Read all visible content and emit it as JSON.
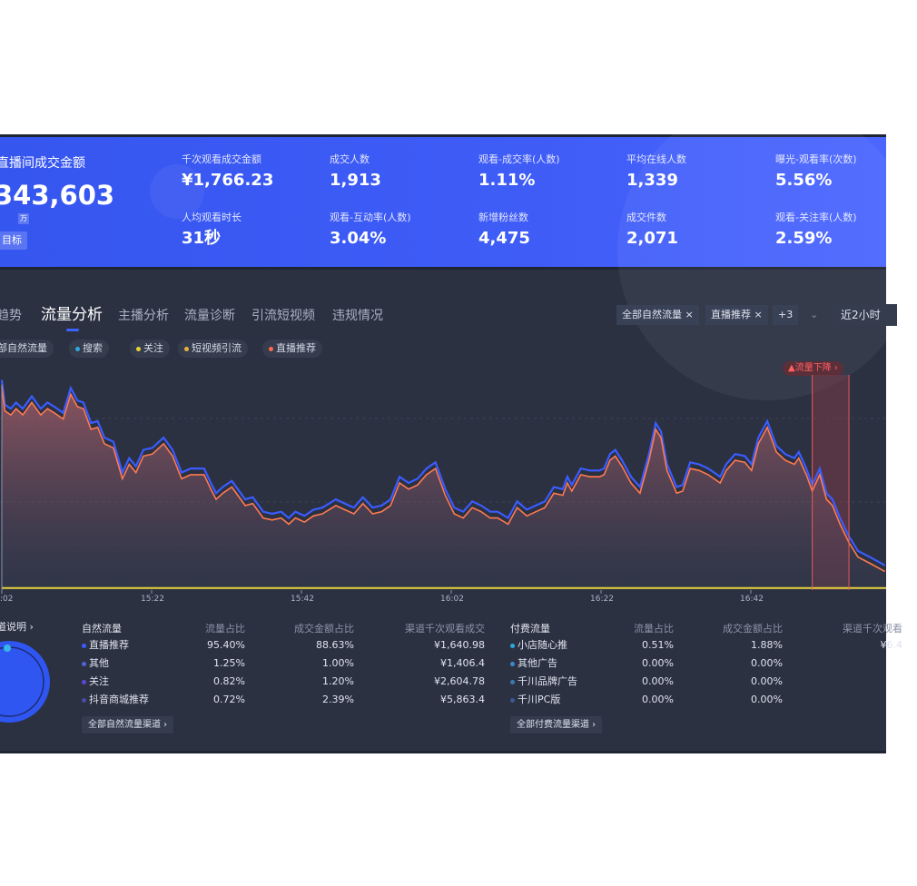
{
  "summary": {
    "main_label": "直播间成交金额",
    "main_value": "343,603",
    "unit": "万",
    "goal_button": "目标",
    "kpis": [
      {
        "label": "千次观看成交金额",
        "value": "¥1,766.23"
      },
      {
        "label": "成交人数",
        "value": "1,913"
      },
      {
        "label": "观看-成交率(人数)",
        "value": "1.11%"
      },
      {
        "label": "平均在线人数",
        "value": "1,339"
      },
      {
        "label": "曝光-观看率(次数)",
        "value": "5.56%"
      },
      {
        "label": "人均观看时长",
        "value": "31秒"
      },
      {
        "label": "观看-互动率(人数)",
        "value": "3.04%"
      },
      {
        "label": "新增粉丝数",
        "value": "4,475"
      },
      {
        "label": "成交件数",
        "value": "2,071"
      },
      {
        "label": "观看-关注率(人数)",
        "value": "2.59%"
      }
    ]
  },
  "tabs": [
    "趋势",
    "流量分析",
    "主播分析",
    "流量诊断",
    "引流短视频",
    "违规情况"
  ],
  "filters": {
    "chips": [
      {
        "label": "部自然流量",
        "color": ""
      },
      {
        "label": "搜索",
        "color": "#2fa8e0"
      },
      {
        "label": "关注",
        "color": "#e8d23a"
      },
      {
        "label": "短视频引流",
        "color": "#e8b040"
      },
      {
        "label": "直播推荐",
        "color": "#ff6a4a"
      }
    ],
    "tags": [
      "全部自然流量 ×",
      "直播推荐 ×",
      "+3",
      "⌄"
    ],
    "range": "近2小时"
  },
  "chart_data": {
    "type": "area",
    "x_unit": "minutes since 15:02",
    "xticks": [
      {
        "m": 0,
        "label": ":02"
      },
      {
        "m": 20,
        "label": "15:22"
      },
      {
        "m": 40,
        "label": "15:42"
      },
      {
        "m": 60,
        "label": "16:02"
      },
      {
        "m": 80,
        "label": "16:22"
      },
      {
        "m": 100,
        "label": "16:42"
      }
    ],
    "xlim": [
      0,
      118
    ],
    "ylim": [
      0,
      100
    ],
    "annotation": {
      "label": "▲流量下降 ›",
      "from": 108.2,
      "to": 113.1
    },
    "series_orange": {
      "name": "直播推荐",
      "color": "#ff7a50",
      "x": [
        0,
        0.4,
        1.2,
        1.9,
        2.8,
        4.0,
        5.2,
        6.1,
        7.0,
        8.2,
        9.2,
        10.1,
        10.9,
        11.9,
        12.8,
        13.7,
        14.9,
        16.1,
        17.0,
        17.9,
        18.9,
        20.1,
        21.6,
        22.8,
        24.0,
        25.2,
        27.0,
        27.9,
        28.6,
        29.5,
        30.7,
        32.5,
        33.5,
        34.9,
        36.1,
        37.3,
        38.3,
        39.2,
        40.4,
        41.6,
        42.8,
        44.6,
        45.8,
        47.0,
        48.2,
        49.5,
        50.7,
        51.9,
        53.1,
        54.3,
        55.5,
        56.7,
        57.9,
        59.2,
        60.4,
        61.6,
        62.8,
        64.0,
        65.2,
        66.2,
        67.6,
        68.8,
        70.1,
        71.3,
        72.5,
        73.7,
        74.9,
        75.5,
        76.1,
        77.3,
        78.5,
        79.8,
        80.4,
        81.2,
        81.9,
        82.8,
        84.0,
        85.2,
        86.4,
        87.3,
        88.0,
        88.8,
        90.1,
        90.9,
        91.9,
        93.1,
        94.3,
        95.9,
        96.7,
        97.9,
        99.2,
        100.1,
        101.0,
        102.2,
        103.4,
        104.6,
        105.8,
        106.4,
        107.4,
        108.2,
        109.2,
        110.1,
        110.9,
        111.9,
        113.1,
        114.3,
        115.9,
        117.9
      ],
      "values": [
        99,
        87,
        85,
        88,
        85,
        91,
        85,
        88,
        86,
        83,
        95,
        89,
        88,
        78,
        79,
        71,
        69,
        54,
        61,
        57,
        65,
        66,
        71,
        65,
        54,
        56,
        56,
        49,
        44,
        47,
        50,
        41,
        42,
        35,
        34,
        35,
        32,
        35,
        33,
        36,
        37,
        41,
        39,
        37,
        42,
        37,
        38,
        41,
        52,
        49,
        51,
        56,
        59,
        46,
        37,
        35,
        40,
        38,
        35,
        35,
        32,
        40,
        36,
        38,
        40,
        47,
        46,
        52,
        48,
        56,
        55,
        55,
        56,
        63,
        65,
        60,
        52,
        47,
        63,
        78,
        74,
        58,
        47,
        48,
        59,
        58,
        56,
        52,
        58,
        63,
        62,
        58,
        71,
        79,
        67,
        63,
        61,
        64,
        56,
        48,
        56,
        44,
        41,
        32,
        23,
        16,
        13,
        9
      ]
    },
    "series_blue": {
      "name": "全部自然流量",
      "color": "#3a5cff",
      "offset": 3
    },
    "series_yellow": {
      "name": "关注",
      "color": "#e8d23a",
      "value": 1
    }
  },
  "natural": {
    "explain": "道说明 ›",
    "headers": [
      "自然流量",
      "流量占比",
      "成交金额占比",
      "渠道千次观看成交"
    ],
    "rows": [
      {
        "name": "直播推荐",
        "color": "#3a5cff",
        "share": "95.40%",
        "gmv": "88.63%",
        "cpm": "¥1,640.98"
      },
      {
        "name": "其他",
        "color": "#4a66d8",
        "share": "1.25%",
        "gmv": "1.00%",
        "cpm": "¥1,406.4"
      },
      {
        "name": "关注",
        "color": "#5a4ad8",
        "share": "0.82%",
        "gmv": "1.20%",
        "cpm": "¥2,604.78"
      },
      {
        "name": "抖音商城推荐",
        "color": "#4a4aa8",
        "share": "0.72%",
        "gmv": "2.39%",
        "cpm": "¥5,863.4"
      }
    ],
    "all_button": "全部自然流量渠道 ›"
  },
  "paid": {
    "headers": [
      "付费流量",
      "流量占比",
      "成交金额占比",
      "渠道千次观看"
    ],
    "rows": [
      {
        "name": "小店随心推",
        "color": "#2fa8e0",
        "share": "0.51%",
        "gmv": "1.88%",
        "cpm": "¥6.4"
      },
      {
        "name": "其他广告",
        "color": "#3a8ad0",
        "share": "0.00%",
        "gmv": "0.00%",
        "cpm": ""
      },
      {
        "name": "千川品牌广告",
        "color": "#3a7ab0",
        "share": "0.00%",
        "gmv": "0.00%",
        "cpm": ""
      },
      {
        "name": "千川PC版",
        "color": "#3a5a90",
        "share": "0.00%",
        "gmv": "0.00%",
        "cpm": ""
      }
    ],
    "all_button": "全部付费流量渠道 ›"
  }
}
